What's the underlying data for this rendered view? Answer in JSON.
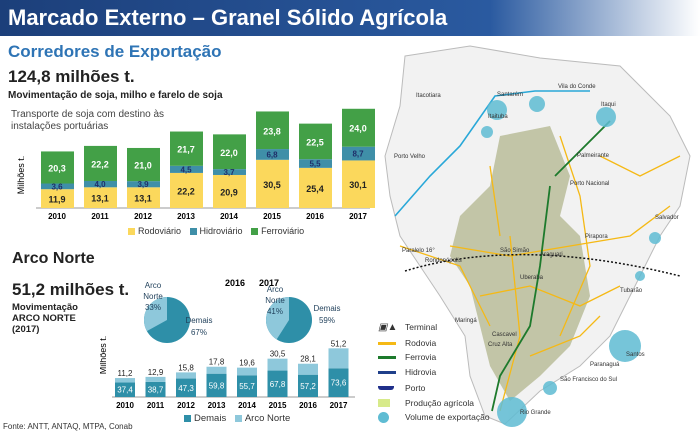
{
  "header": {
    "title": "Marcado Externo – Granel Sólido Agrícola"
  },
  "section1": {
    "title": "Corredores de Exportação",
    "total": "124,8 milhões t.",
    "subtitle": "Movimentação de soja, milho e farelo de soja",
    "chart_caption_1": "Transporte de soja com destino às",
    "chart_caption_2": "instalações portuárias"
  },
  "section2": {
    "title": "Arco Norte",
    "total": "51,2 milhões t.",
    "sub1": "Movimentação",
    "sub2": "ARCO NORTE",
    "sub3": "(2017)"
  },
  "source": "Fonte: ANTT, ANTAQ, MTPA, Conab",
  "colors": {
    "rodoviario": "#fbd85c",
    "hidroviario": "#3f8fa8",
    "ferroviario": "#43a047",
    "demais": "#2e8fa8",
    "arco": "#8ec8db"
  },
  "chart_data": [
    {
      "type": "bar",
      "stacked": true,
      "title": "Transporte de soja com destino às instalações portuárias",
      "ylabel": "Milhões t.",
      "categories": [
        "2010",
        "2011",
        "2012",
        "2013",
        "2014",
        "2015",
        "2016",
        "2017"
      ],
      "series": [
        {
          "name": "Rodoviário",
          "values": [
            11.9,
            13.1,
            13.1,
            22.2,
            20.9,
            30.5,
            25.4,
            30.1
          ],
          "labels": [
            "11,9",
            "13,1",
            "13,1",
            "22,2",
            "20,9",
            "30,5",
            "25,4",
            "30,1"
          ]
        },
        {
          "name": "Hidroviário",
          "values": [
            3.6,
            4.0,
            3.9,
            4.5,
            3.7,
            6.8,
            5.5,
            8.7
          ],
          "labels": [
            "3,6",
            "4,0",
            "3,9",
            "4,5",
            "3,7",
            "6,8",
            "5,5",
            "8,7"
          ]
        },
        {
          "name": "Ferroviário",
          "values": [
            20.3,
            22.2,
            21.0,
            21.7,
            22.0,
            23.8,
            22.5,
            24.0
          ],
          "labels": [
            "20,3",
            "22,2",
            "21,0",
            "21,7",
            "22,0",
            "23,8",
            "22,5",
            "24,0"
          ]
        }
      ],
      "legend": "bottom"
    },
    {
      "type": "bar",
      "stacked": true,
      "ylabel": "Milhões t.",
      "categories": [
        "2010",
        "2011",
        "2012",
        "2013",
        "2014",
        "2015",
        "2016",
        "2017"
      ],
      "series": [
        {
          "name": "Demais",
          "values": [
            37.4,
            38.7,
            47.3,
            59.8,
            55.7,
            67.8,
            57.2,
            73.6
          ],
          "labels": [
            "37,4",
            "38,7",
            "47,3",
            "59,8",
            "55,7",
            "67,8",
            "57,2",
            "73,6"
          ]
        },
        {
          "name": "Arco Norte",
          "values": [
            11.2,
            12.9,
            15.8,
            17.8,
            19.6,
            30.5,
            28.1,
            51.2
          ],
          "labels": [
            "11,2",
            "12,9",
            "15,8",
            "17,8",
            "19,6",
            "30,5",
            "28,1",
            "51,2"
          ]
        }
      ],
      "legend": "bottom"
    },
    {
      "type": "pie",
      "title": "2016",
      "slices": [
        {
          "name": "Arco Norte",
          "value": 33,
          "label": "33%"
        },
        {
          "name": "Demais",
          "value": 67,
          "label": "67%"
        }
      ]
    },
    {
      "type": "pie",
      "title": "2017",
      "slices": [
        {
          "name": "Arco Norte",
          "value": 41,
          "label": "41%"
        },
        {
          "name": "Demais",
          "value": 59,
          "label": "59%"
        }
      ]
    }
  ],
  "pie_labels": {
    "arco1": "Arco",
    "arco2": "Norte",
    "demais": "Demais"
  },
  "map": {
    "legend": [
      "Terminal",
      "Rodovia",
      "Ferrovia",
      "Hidrovia",
      "Porto",
      "Produção agrícola",
      "Volume de exportação"
    ],
    "cities": [
      "Itacotiara",
      "Santarém",
      "Itaituba",
      "Vila do Conde",
      "Itaqui",
      "Porto Velho",
      "Palmeirante",
      "Porto Nacional",
      "Salvador",
      "Paralelo 16°",
      "Rondonópolis",
      "Pirapora",
      "São Simão",
      "Araguari",
      "Uberaba",
      "Tubarão",
      "Maringá",
      "Cascavel",
      "Cruz Alta",
      "Santos",
      "Paranaguá",
      "São Francisco do Sul",
      "Rio Grande"
    ]
  }
}
